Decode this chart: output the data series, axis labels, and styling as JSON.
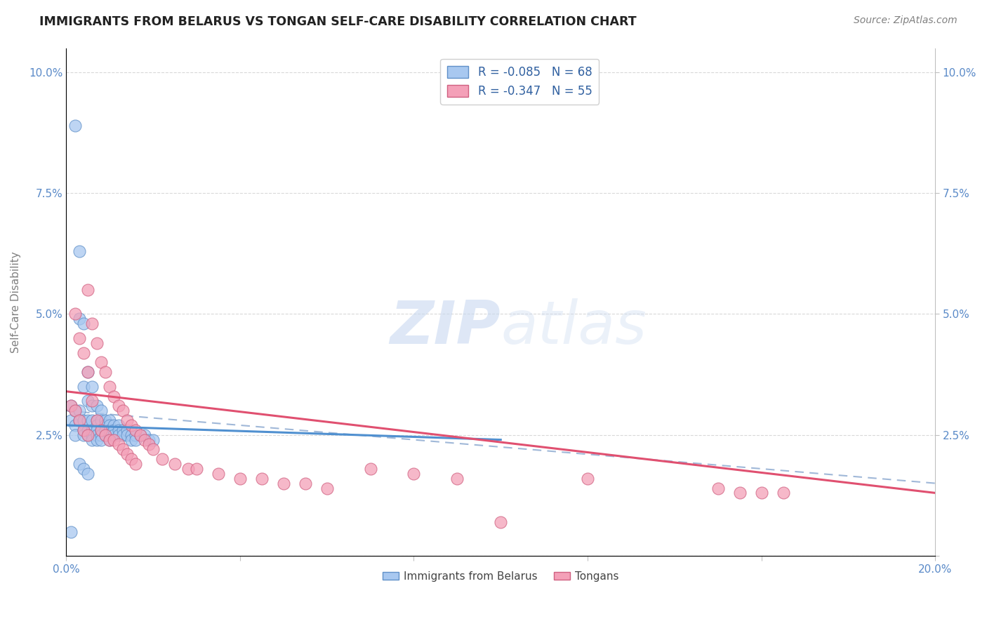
{
  "title": "IMMIGRANTS FROM BELARUS VS TONGAN SELF-CARE DISABILITY CORRELATION CHART",
  "source": "Source: ZipAtlas.com",
  "ylabel": "Self-Care Disability",
  "xlim": [
    0.0,
    0.2
  ],
  "ylim": [
    0.0,
    0.105
  ],
  "xticks": [
    0.0,
    0.04,
    0.08,
    0.12,
    0.16,
    0.2
  ],
  "yticks": [
    0.0,
    0.025,
    0.05,
    0.075,
    0.1
  ],
  "legend1_label": "R = -0.085   N = 68",
  "legend2_label": "R = -0.347   N = 55",
  "blue_color": "#A8C8F0",
  "pink_color": "#F4A0B8",
  "blue_edge_color": "#6090C8",
  "pink_edge_color": "#D06080",
  "blue_line_color": "#5090D0",
  "pink_line_color": "#E05070",
  "dashed_line_color": "#A0B8D8",
  "watermark_color": "#C8D8F0",
  "R_blue": -0.085,
  "N_blue": 68,
  "R_pink": -0.347,
  "N_pink": 55,
  "blue_scatter_x": [
    0.001,
    0.001,
    0.002,
    0.002,
    0.002,
    0.002,
    0.003,
    0.003,
    0.003,
    0.003,
    0.004,
    0.004,
    0.004,
    0.004,
    0.004,
    0.005,
    0.005,
    0.005,
    0.005,
    0.005,
    0.006,
    0.006,
    0.006,
    0.006,
    0.006,
    0.006,
    0.007,
    0.007,
    0.007,
    0.007,
    0.007,
    0.007,
    0.008,
    0.008,
    0.008,
    0.008,
    0.008,
    0.009,
    0.009,
    0.009,
    0.009,
    0.01,
    0.01,
    0.01,
    0.01,
    0.01,
    0.011,
    0.011,
    0.011,
    0.012,
    0.012,
    0.012,
    0.013,
    0.013,
    0.014,
    0.014,
    0.015,
    0.015,
    0.016,
    0.016,
    0.017,
    0.018,
    0.019,
    0.02,
    0.003,
    0.004,
    0.005,
    0.001
  ],
  "blue_scatter_y": [
    0.031,
    0.028,
    0.089,
    0.03,
    0.027,
    0.025,
    0.063,
    0.049,
    0.03,
    0.028,
    0.048,
    0.035,
    0.028,
    0.026,
    0.025,
    0.038,
    0.032,
    0.028,
    0.026,
    0.025,
    0.035,
    0.031,
    0.028,
    0.026,
    0.025,
    0.024,
    0.031,
    0.028,
    0.027,
    0.026,
    0.025,
    0.024,
    0.03,
    0.028,
    0.026,
    0.025,
    0.024,
    0.028,
    0.027,
    0.026,
    0.025,
    0.028,
    0.027,
    0.026,
    0.025,
    0.024,
    0.027,
    0.026,
    0.025,
    0.027,
    0.026,
    0.025,
    0.026,
    0.025,
    0.026,
    0.025,
    0.025,
    0.024,
    0.025,
    0.024,
    0.025,
    0.025,
    0.024,
    0.024,
    0.019,
    0.018,
    0.017,
    0.005
  ],
  "pink_scatter_x": [
    0.001,
    0.002,
    0.002,
    0.003,
    0.003,
    0.004,
    0.004,
    0.005,
    0.005,
    0.005,
    0.006,
    0.006,
    0.007,
    0.007,
    0.008,
    0.008,
    0.009,
    0.009,
    0.01,
    0.01,
    0.011,
    0.011,
    0.012,
    0.012,
    0.013,
    0.013,
    0.014,
    0.014,
    0.015,
    0.015,
    0.016,
    0.016,
    0.017,
    0.018,
    0.019,
    0.02,
    0.022,
    0.025,
    0.028,
    0.03,
    0.035,
    0.04,
    0.045,
    0.05,
    0.055,
    0.06,
    0.07,
    0.08,
    0.09,
    0.1,
    0.12,
    0.15,
    0.155,
    0.16,
    0.165
  ],
  "pink_scatter_y": [
    0.031,
    0.05,
    0.03,
    0.045,
    0.028,
    0.042,
    0.026,
    0.055,
    0.038,
    0.025,
    0.048,
    0.032,
    0.044,
    0.028,
    0.04,
    0.026,
    0.038,
    0.025,
    0.035,
    0.024,
    0.033,
    0.024,
    0.031,
    0.023,
    0.03,
    0.022,
    0.028,
    0.021,
    0.027,
    0.02,
    0.026,
    0.019,
    0.025,
    0.024,
    0.023,
    0.022,
    0.02,
    0.019,
    0.018,
    0.018,
    0.017,
    0.016,
    0.016,
    0.015,
    0.015,
    0.014,
    0.018,
    0.017,
    0.016,
    0.007,
    0.016,
    0.014,
    0.013,
    0.013,
    0.013
  ],
  "blue_line_x0": 0.0,
  "blue_line_x1": 0.1,
  "blue_line_y0": 0.027,
  "blue_line_y1": 0.024,
  "pink_line_x0": 0.0,
  "pink_line_x1": 0.2,
  "pink_line_y0": 0.034,
  "pink_line_y1": 0.013,
  "dash_line_x0": 0.0,
  "dash_line_x1": 0.2,
  "dash_line_y0": 0.03,
  "dash_line_y1": 0.015
}
